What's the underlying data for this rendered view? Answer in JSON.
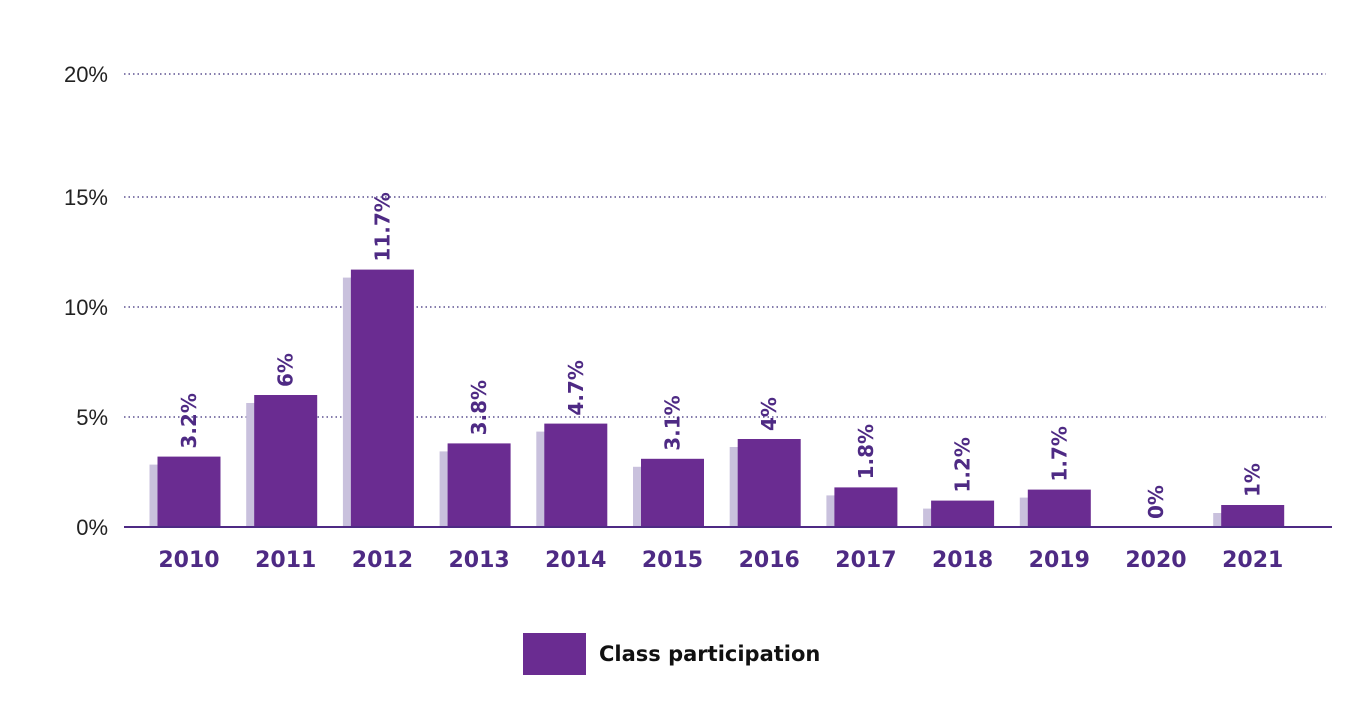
{
  "chart_data": {
    "type": "bar",
    "title": "",
    "xlabel": "",
    "ylabel": "",
    "categories": [
      "2010",
      "2011",
      "2012",
      "2013",
      "2014",
      "2015",
      "2016",
      "2017",
      "2018",
      "2019",
      "2020",
      "2021"
    ],
    "series": [
      {
        "name": "Class participation",
        "values": [
          3.2,
          6,
          11.7,
          3.8,
          4.7,
          3.1,
          4,
          1.8,
          1.2,
          1.7,
          0,
          1
        ],
        "labels": [
          "3.2%",
          "6%",
          "11.7%",
          "3.8%",
          "4.7%",
          "3.1%",
          "4%",
          "1.8%",
          "1.2%",
          "1.7%",
          "0%",
          "1%"
        ]
      }
    ],
    "ylim": [
      0,
      20
    ],
    "yticks": [
      0,
      5,
      10,
      15,
      20
    ],
    "ytick_labels": [
      "0%",
      "5%",
      "10%",
      "15%",
      "20%"
    ],
    "grid": "horizontal dotted",
    "legend_placement": "bottom-center",
    "colors": {
      "bar": "#6a2c91",
      "bar_shadow": "#c9c1dd",
      "label": "#4e2a84",
      "grid": "#3b2d7a"
    }
  }
}
